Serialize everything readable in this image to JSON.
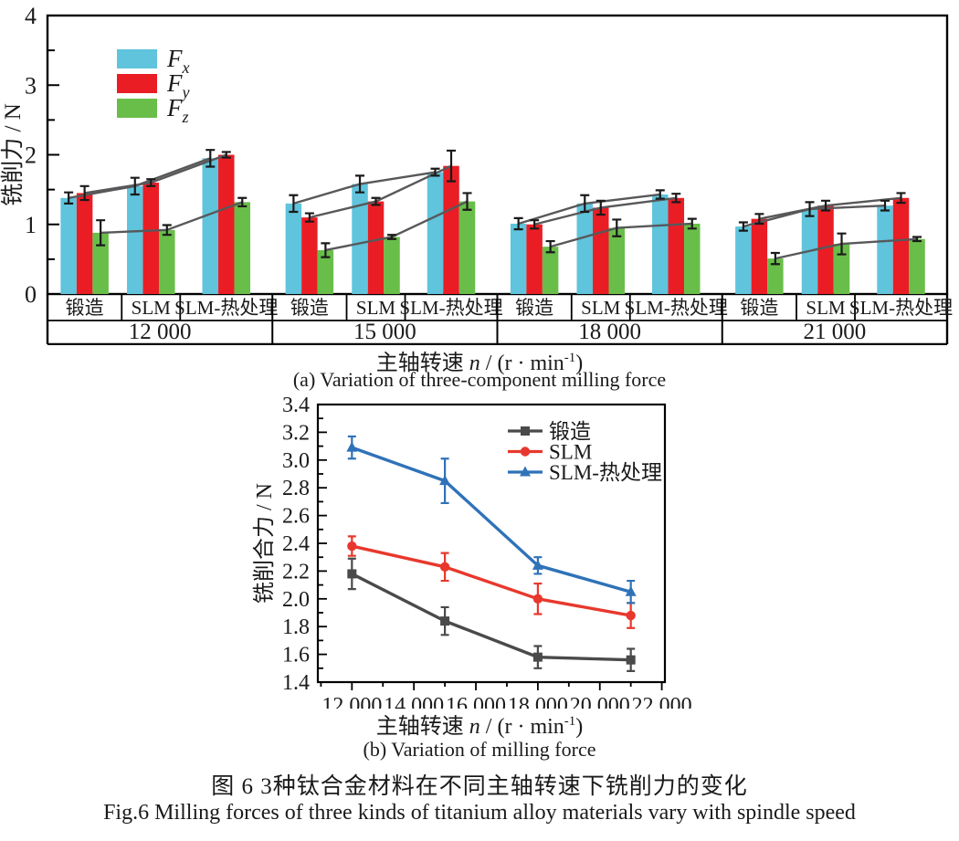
{
  "figure": {
    "caption_zh": "图 6  3种钛合金材料在不同主轴转速下铣削力的变化",
    "caption_en": "Fig.6  Milling forces of three kinds of titanium alloy materials vary with spindle speed"
  },
  "chart_data": [
    {
      "type": "bar",
      "panel_caption": "(a) Variation of three-component milling force",
      "ylabel": "铣削力 / N",
      "xlabel": "主轴转速 n / (r · min⁻¹)",
      "xlabel_parts": {
        "prefix": "主轴转速 ",
        "variable": "n",
        "mid": " / (r · min",
        "sup": "-1",
        "suffix": ")"
      },
      "ylim": [
        0,
        4
      ],
      "yticks": [
        "0",
        "1",
        "2",
        "3",
        "4"
      ],
      "speed_groups": [
        "12 000",
        "15 000",
        "18 000",
        "21 000"
      ],
      "materials": [
        "锻造",
        "SLM",
        "SLM-热处理"
      ],
      "legend": [
        {
          "label": "F",
          "sub": "x",
          "color": "#5FC4DC"
        },
        {
          "label": "F",
          "sub": "y",
          "color": "#EA1D25"
        },
        {
          "label": "F",
          "sub": "z",
          "color": "#69BE4A"
        }
      ],
      "series": [
        {
          "name": "Fx",
          "color": "#5FC4DC",
          "values": [
            [
              1.38,
              1.55,
              1.95
            ],
            [
              1.3,
              1.58,
              1.75
            ],
            [
              1.01,
              1.3,
              1.43
            ],
            [
              0.97,
              1.22,
              1.27
            ]
          ],
          "errors": [
            [
              0.08,
              0.12,
              0.12
            ],
            [
              0.12,
              0.12,
              0.05
            ],
            [
              0.08,
              0.12,
              0.06
            ],
            [
              0.06,
              0.1,
              0.07
            ]
          ]
        },
        {
          "name": "Fy",
          "color": "#EA1D25",
          "values": [
            [
              1.45,
              1.6,
              2.0
            ],
            [
              1.1,
              1.33,
              1.84
            ],
            [
              1.0,
              1.24,
              1.38
            ],
            [
              1.08,
              1.27,
              1.38
            ]
          ],
          "errors": [
            [
              0.1,
              0.05,
              0.04
            ],
            [
              0.06,
              0.05,
              0.22
            ],
            [
              0.06,
              0.1,
              0.06
            ],
            [
              0.07,
              0.07,
              0.07
            ]
          ]
        },
        {
          "name": "Fz",
          "color": "#69BE4A",
          "values": [
            [
              0.88,
              0.92,
              1.32
            ],
            [
              0.63,
              0.82,
              1.33
            ],
            [
              0.68,
              0.95,
              1.01
            ],
            [
              0.51,
              0.72,
              0.79
            ]
          ],
          "errors": [
            [
              0.18,
              0.07,
              0.06
            ],
            [
              0.1,
              0.03,
              0.12
            ],
            [
              0.08,
              0.12,
              0.07
            ],
            [
              0.08,
              0.15,
              0.03
            ]
          ]
        }
      ],
      "connector_color": "#58585A",
      "error_bar_color": "#1a1a1a",
      "grid": false
    },
    {
      "type": "line",
      "panel_caption": "(b) Variation of milling force",
      "ylabel": "铣削合力 / N",
      "xlabel": "主轴转速 n / (r · min⁻¹)",
      "xlabel_parts": {
        "prefix": "主轴转速 ",
        "variable": "n",
        "mid": " / (r · min",
        "sup": "-1",
        "suffix": ")"
      },
      "ylim": [
        1.4,
        3.4
      ],
      "yticks": [
        "1.4",
        "1.6",
        "1.8",
        "2.0",
        "2.2",
        "2.4",
        "2.6",
        "2.8",
        "3.0",
        "3.2",
        "3.4"
      ],
      "xlim": [
        10900,
        22100
      ],
      "xticks": [
        "12 000",
        "14 000",
        "16 000",
        "18 000",
        "20 000",
        "22 000"
      ],
      "x": [
        12000,
        15000,
        18000,
        21000
      ],
      "series": [
        {
          "name": "锻造",
          "marker": "square",
          "color": "#4A4A4A",
          "values": [
            2.18,
            1.84,
            1.58,
            1.56
          ],
          "errors": [
            0.11,
            0.1,
            0.08,
            0.08
          ]
        },
        {
          "name": "SLM",
          "marker": "circle",
          "color": "#E8382D",
          "values": [
            2.38,
            2.23,
            2.0,
            1.88
          ],
          "errors": [
            0.07,
            0.1,
            0.11,
            0.09
          ]
        },
        {
          "name": "SLM-热处理",
          "marker": "triangle",
          "color": "#2F72B8",
          "values": [
            3.09,
            2.85,
            2.24,
            2.05
          ],
          "errors": [
            0.08,
            0.16,
            0.06,
            0.08
          ]
        }
      ],
      "legend_position": "top-right",
      "grid": false
    }
  ]
}
